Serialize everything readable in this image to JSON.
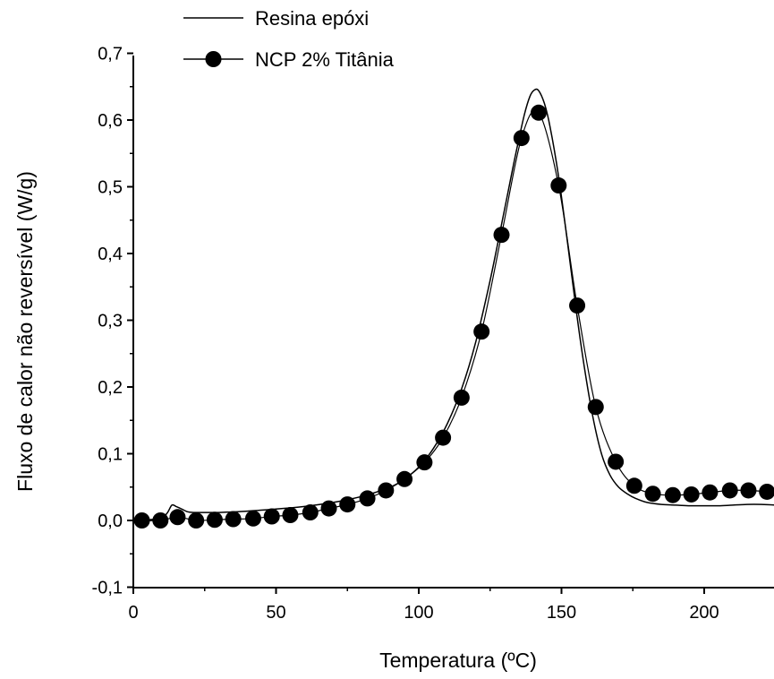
{
  "chart_data": {
    "type": "line",
    "title": "",
    "xlabel": "Temperatura (ºC)",
    "ylabel": "Fluxo de calor não reversível (W/g)",
    "xlim": [
      0,
      225
    ],
    "ylim": [
      -0.1,
      0.7
    ],
    "x_ticks": [
      0,
      50,
      100,
      150,
      200
    ],
    "x_tick_labels": [
      "0",
      "50",
      "100",
      "150",
      "200"
    ],
    "y_ticks": [
      -0.1,
      0.0,
      0.1,
      0.2,
      0.3,
      0.4,
      0.5,
      0.6,
      0.7
    ],
    "y_tick_labels": [
      "-0,1",
      "0,0",
      "0,1",
      "0,2",
      "0,3",
      "0,4",
      "0,5",
      "0,6",
      "0,7"
    ],
    "grid": false,
    "legend_position": "top-left",
    "series": [
      {
        "name": "Resina epóxi",
        "style": "line",
        "color": "#000000",
        "x": [
          0,
          5,
          10,
          12,
          13.5,
          15,
          17,
          19,
          21,
          25,
          30,
          40,
          50,
          60,
          70,
          80,
          90,
          95,
          100,
          105,
          110,
          115,
          120,
          125,
          130,
          134,
          137,
          139,
          140.5,
          142,
          144,
          146,
          149,
          152,
          155,
          158,
          161,
          164,
          167,
          170,
          173,
          176,
          180,
          185,
          190,
          195,
          200,
          205,
          210,
          215,
          220,
          225
        ],
        "y": [
          0.0,
          0.001,
          0.004,
          0.012,
          0.023,
          0.021,
          0.017,
          0.013,
          0.012,
          0.012,
          0.012,
          0.014,
          0.017,
          0.021,
          0.027,
          0.036,
          0.05,
          0.062,
          0.08,
          0.107,
          0.145,
          0.197,
          0.268,
          0.36,
          0.465,
          0.55,
          0.608,
          0.636,
          0.645,
          0.644,
          0.625,
          0.59,
          0.515,
          0.42,
          0.32,
          0.23,
          0.155,
          0.1,
          0.068,
          0.05,
          0.04,
          0.033,
          0.027,
          0.024,
          0.023,
          0.022,
          0.022,
          0.022,
          0.023,
          0.024,
          0.024,
          0.023
        ]
      },
      {
        "name": "NCP 2% Titânia",
        "style": "line-markers",
        "color": "#000000",
        "x": [
          3,
          9.5,
          15.5,
          22,
          28.5,
          35,
          42,
          48.5,
          55,
          62,
          68.5,
          75,
          82,
          88.5,
          95,
          102,
          108.5,
          115,
          122,
          129,
          136,
          142,
          149,
          155.5,
          162,
          169,
          175.5,
          182,
          189,
          195.5,
          202,
          209,
          215.5,
          222
        ],
        "y": [
          0.0,
          0.0,
          0.005,
          0.0,
          0.001,
          0.002,
          0.003,
          0.006,
          0.008,
          0.012,
          0.018,
          0.024,
          0.033,
          0.045,
          0.062,
          0.087,
          0.124,
          0.184,
          0.283,
          0.428,
          0.573,
          0.611,
          0.502,
          0.322,
          0.17,
          0.088,
          0.052,
          0.04,
          0.038,
          0.039,
          0.042,
          0.045,
          0.045,
          0.043
        ]
      }
    ]
  }
}
